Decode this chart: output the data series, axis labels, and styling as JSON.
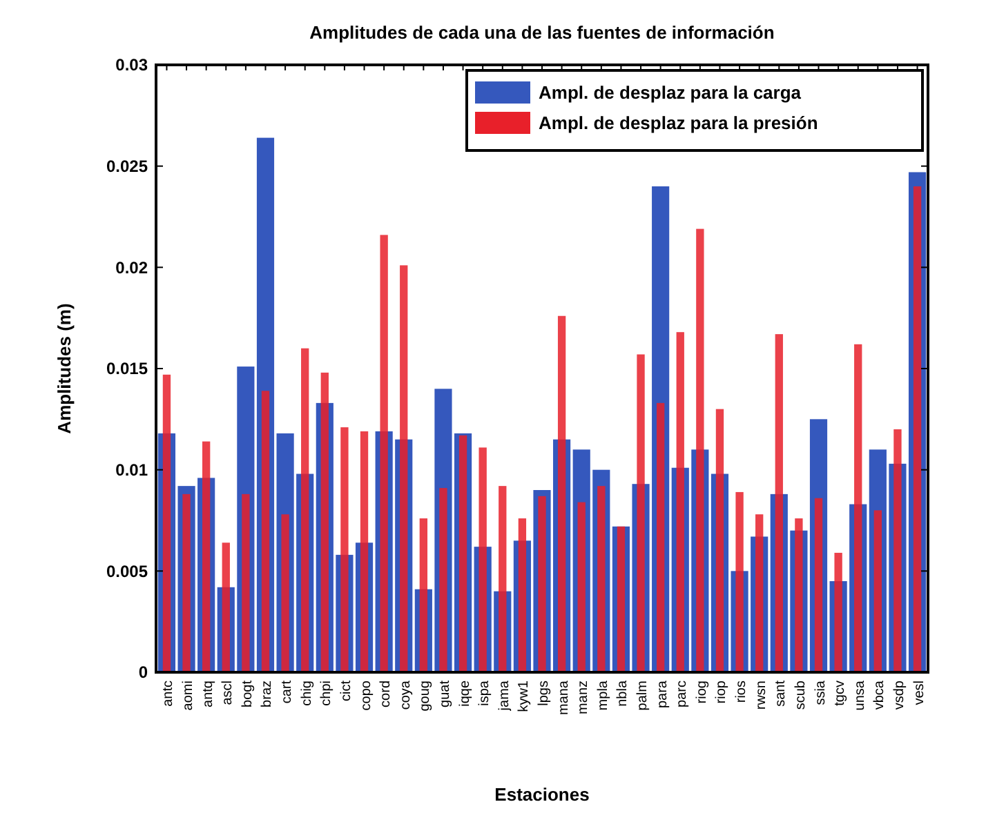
{
  "chart_data": {
    "type": "bar",
    "title": "Amplitudes de cada una de las fuentes de información",
    "xlabel": "Estaciones",
    "ylabel": "Amplitudes (m)",
    "categories": [
      "antc",
      "aomi",
      "antq",
      "ascl",
      "bogt",
      "braz",
      "cart",
      "chig",
      "chpi",
      "cict",
      "copo",
      "cord",
      "coya",
      "goug",
      "guat",
      "iqqe",
      "ispa",
      "jama",
      "kyw1",
      "lpgs",
      "mana",
      "manz",
      "mpla",
      "nbla",
      "palm",
      "para",
      "parc",
      "riog",
      "riop",
      "rios",
      "rwsn",
      "sant",
      "scub",
      "ssia",
      "tgcv",
      "unsa",
      "vbca",
      "vsdp",
      "vesl"
    ],
    "series": [
      {
        "name": "Ampl. de desplaz para la carga",
        "color": "#3558bd",
        "values": [
          0.0118,
          0.0092,
          0.0096,
          0.0042,
          0.0151,
          0.0264,
          0.0118,
          0.0098,
          0.0133,
          0.0058,
          0.0064,
          0.0119,
          0.0115,
          0.0041,
          0.014,
          0.0118,
          0.0062,
          0.004,
          0.0065,
          0.009,
          0.0115,
          0.011,
          0.01,
          0.0072,
          0.0093,
          0.024,
          0.0101,
          0.011,
          0.0098,
          0.005,
          0.0067,
          0.0088,
          0.007,
          0.0125,
          0.0045,
          0.0083,
          0.011,
          0.0103,
          0.0247
        ]
      },
      {
        "name": "Ampl. de desplaz para la presión",
        "color": "#e8202a",
        "values": [
          0.0147,
          0.0088,
          0.0114,
          0.0064,
          0.0088,
          0.0139,
          0.0078,
          0.016,
          0.0148,
          0.0121,
          0.0119,
          0.0216,
          0.0201,
          0.0076,
          0.0091,
          0.0117,
          0.0111,
          0.0092,
          0.0076,
          0.0087,
          0.0176,
          0.0084,
          0.0092,
          0.0072,
          0.0157,
          0.0133,
          0.0168,
          0.0219,
          0.013,
          0.0089,
          0.0078,
          0.0167,
          0.0076,
          0.0086,
          0.0059,
          0.0162,
          0.008,
          0.012,
          0.024
        ]
      }
    ],
    "ylim": [
      0,
      0.03
    ],
    "yticks": [
      0,
      0.005,
      0.01,
      0.015,
      0.02,
      0.025,
      0.03
    ],
    "grid": false,
    "legend": "top right"
  }
}
